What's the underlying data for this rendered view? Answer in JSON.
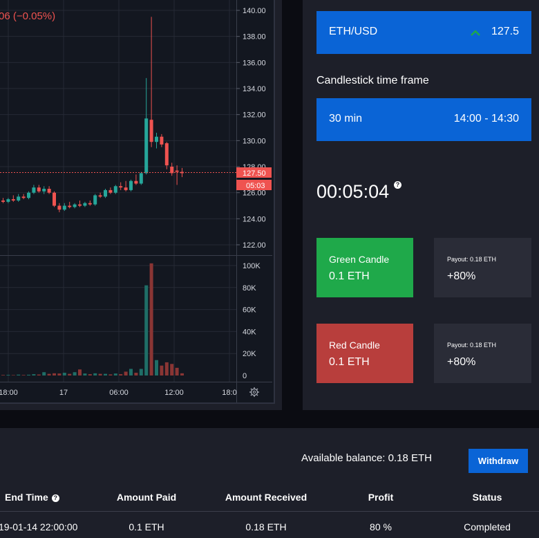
{
  "chart": {
    "change_text": "06 (−0.05%)",
    "current_price_tag": "127.50",
    "countdown_tag": "05:03",
    "price_axis_labels": [
      "140.00",
      "138.00",
      "136.00",
      "134.00",
      "132.00",
      "130.00",
      "128.00",
      "126.00",
      "124.00",
      "122.00"
    ],
    "volume_axis_labels": [
      "100K",
      "80K",
      "60K",
      "40K",
      "20K",
      "0"
    ],
    "time_axis_labels": [
      "18:00",
      "17",
      "06:00",
      "12:00",
      "18:0"
    ],
    "settings_icon": "gear-icon",
    "colors": {
      "up": "#26a69a",
      "down": "#ef5350",
      "background": "#131720"
    }
  },
  "chart_data": {
    "type": "candlestick",
    "y_range": [
      121,
      140.5
    ],
    "volume_range": [
      0,
      100000
    ],
    "candles": [
      {
        "o": 125.4,
        "h": 125.6,
        "l": 125.2,
        "c": 125.3
      },
      {
        "o": 125.3,
        "h": 125.6,
        "l": 125.2,
        "c": 125.5
      },
      {
        "o": 125.5,
        "h": 125.8,
        "l": 125.3,
        "c": 125.4
      },
      {
        "o": 125.4,
        "h": 125.9,
        "l": 125.3,
        "c": 125.7
      },
      {
        "o": 125.7,
        "h": 125.9,
        "l": 125.5,
        "c": 125.6
      },
      {
        "o": 125.6,
        "h": 126.1,
        "l": 125.5,
        "c": 126.0
      },
      {
        "o": 126.0,
        "h": 126.6,
        "l": 125.9,
        "c": 126.4
      },
      {
        "o": 126.4,
        "h": 126.6,
        "l": 126.0,
        "c": 126.1
      },
      {
        "o": 126.1,
        "h": 126.5,
        "l": 125.9,
        "c": 126.3
      },
      {
        "o": 126.3,
        "h": 126.5,
        "l": 125.9,
        "c": 126.0
      },
      {
        "o": 126.0,
        "h": 126.1,
        "l": 124.9,
        "c": 125.0
      },
      {
        "o": 125.0,
        "h": 125.2,
        "l": 124.5,
        "c": 124.7
      },
      {
        "o": 124.7,
        "h": 125.2,
        "l": 124.6,
        "c": 125.0
      },
      {
        "o": 125.0,
        "h": 125.3,
        "l": 124.8,
        "c": 124.9
      },
      {
        "o": 124.9,
        "h": 125.2,
        "l": 124.8,
        "c": 125.1
      },
      {
        "o": 125.1,
        "h": 125.4,
        "l": 124.9,
        "c": 125.0
      },
      {
        "o": 125.0,
        "h": 125.3,
        "l": 124.9,
        "c": 125.2
      },
      {
        "o": 125.2,
        "h": 125.4,
        "l": 125.0,
        "c": 125.1
      },
      {
        "o": 125.1,
        "h": 125.9,
        "l": 125.0,
        "c": 125.8
      },
      {
        "o": 125.8,
        "h": 126.0,
        "l": 125.6,
        "c": 125.7
      },
      {
        "o": 125.7,
        "h": 126.3,
        "l": 125.6,
        "c": 126.2
      },
      {
        "o": 126.2,
        "h": 126.4,
        "l": 125.9,
        "c": 126.0
      },
      {
        "o": 126.0,
        "h": 126.6,
        "l": 125.9,
        "c": 126.5
      },
      {
        "o": 126.5,
        "h": 126.8,
        "l": 126.2,
        "c": 126.4
      },
      {
        "o": 126.4,
        "h": 126.9,
        "l": 126.1,
        "c": 126.2
      },
      {
        "o": 126.2,
        "h": 127.0,
        "l": 126.1,
        "c": 126.9
      },
      {
        "o": 126.9,
        "h": 127.4,
        "l": 126.6,
        "c": 126.7
      },
      {
        "o": 126.7,
        "h": 127.6,
        "l": 126.6,
        "c": 127.5
      },
      {
        "o": 127.5,
        "h": 134.8,
        "l": 127.4,
        "c": 131.7
      },
      {
        "o": 131.6,
        "h": 139.5,
        "l": 129.5,
        "c": 129.9
      },
      {
        "o": 129.9,
        "h": 130.6,
        "l": 129.4,
        "c": 130.3
      },
      {
        "o": 130.3,
        "h": 130.5,
        "l": 129.5,
        "c": 129.7
      },
      {
        "o": 129.8,
        "h": 129.9,
        "l": 127.8,
        "c": 128.1
      },
      {
        "o": 128.0,
        "h": 128.3,
        "l": 127.3,
        "c": 127.5
      },
      {
        "o": 127.7,
        "h": 128.1,
        "l": 126.6,
        "c": 127.6
      },
      {
        "o": 127.6,
        "h": 127.9,
        "l": 127.2,
        "c": 127.5
      }
    ],
    "volumes": [
      500,
      600,
      400,
      800,
      500,
      700,
      1200,
      900,
      3000,
      1500,
      2000,
      1800,
      2500,
      1500,
      3000,
      5500,
      1800,
      1200,
      2000,
      1500,
      1500,
      1000,
      1800,
      1200,
      3500,
      6000,
      2500,
      6000,
      82000,
      102000,
      14000,
      9000,
      12000,
      10500,
      7000,
      2000
    ]
  },
  "pair": {
    "name": "ETH/USD",
    "price": "127.5",
    "arrow_color": "#1fa94a"
  },
  "timeframe": {
    "title": "Candlestick time frame",
    "interval": "30 min",
    "range": "14:00 - 14:30"
  },
  "timer": {
    "value": "00:05:04",
    "help": "?"
  },
  "bets": {
    "green": {
      "label": "Green Candle",
      "amount": "0.1 ETH",
      "payout_label": "Payout: 0.18 ETH",
      "payout_pct": "+80%",
      "color": "#1fa94a"
    },
    "red": {
      "label": "Red Candle",
      "amount": "0.1 ETH",
      "payout_label": "Payout: 0.18 ETH",
      "payout_pct": "+80%",
      "color": "#b83e3c"
    }
  },
  "account": {
    "balance_text": "Available balance: 0.18 ETH",
    "withdraw_label": "Withdraw"
  },
  "table": {
    "headers": {
      "end_time": "End Time",
      "help": "?",
      "amount_paid": "Amount Paid",
      "amount_received": "Amount Received",
      "profit": "Profit",
      "status": "Status"
    },
    "row": {
      "end_time": "19-01-14 22:00:00",
      "amount_paid": "0.1 ETH",
      "amount_received": "0.18 ETH",
      "profit": "80 %",
      "status": "Completed"
    }
  }
}
